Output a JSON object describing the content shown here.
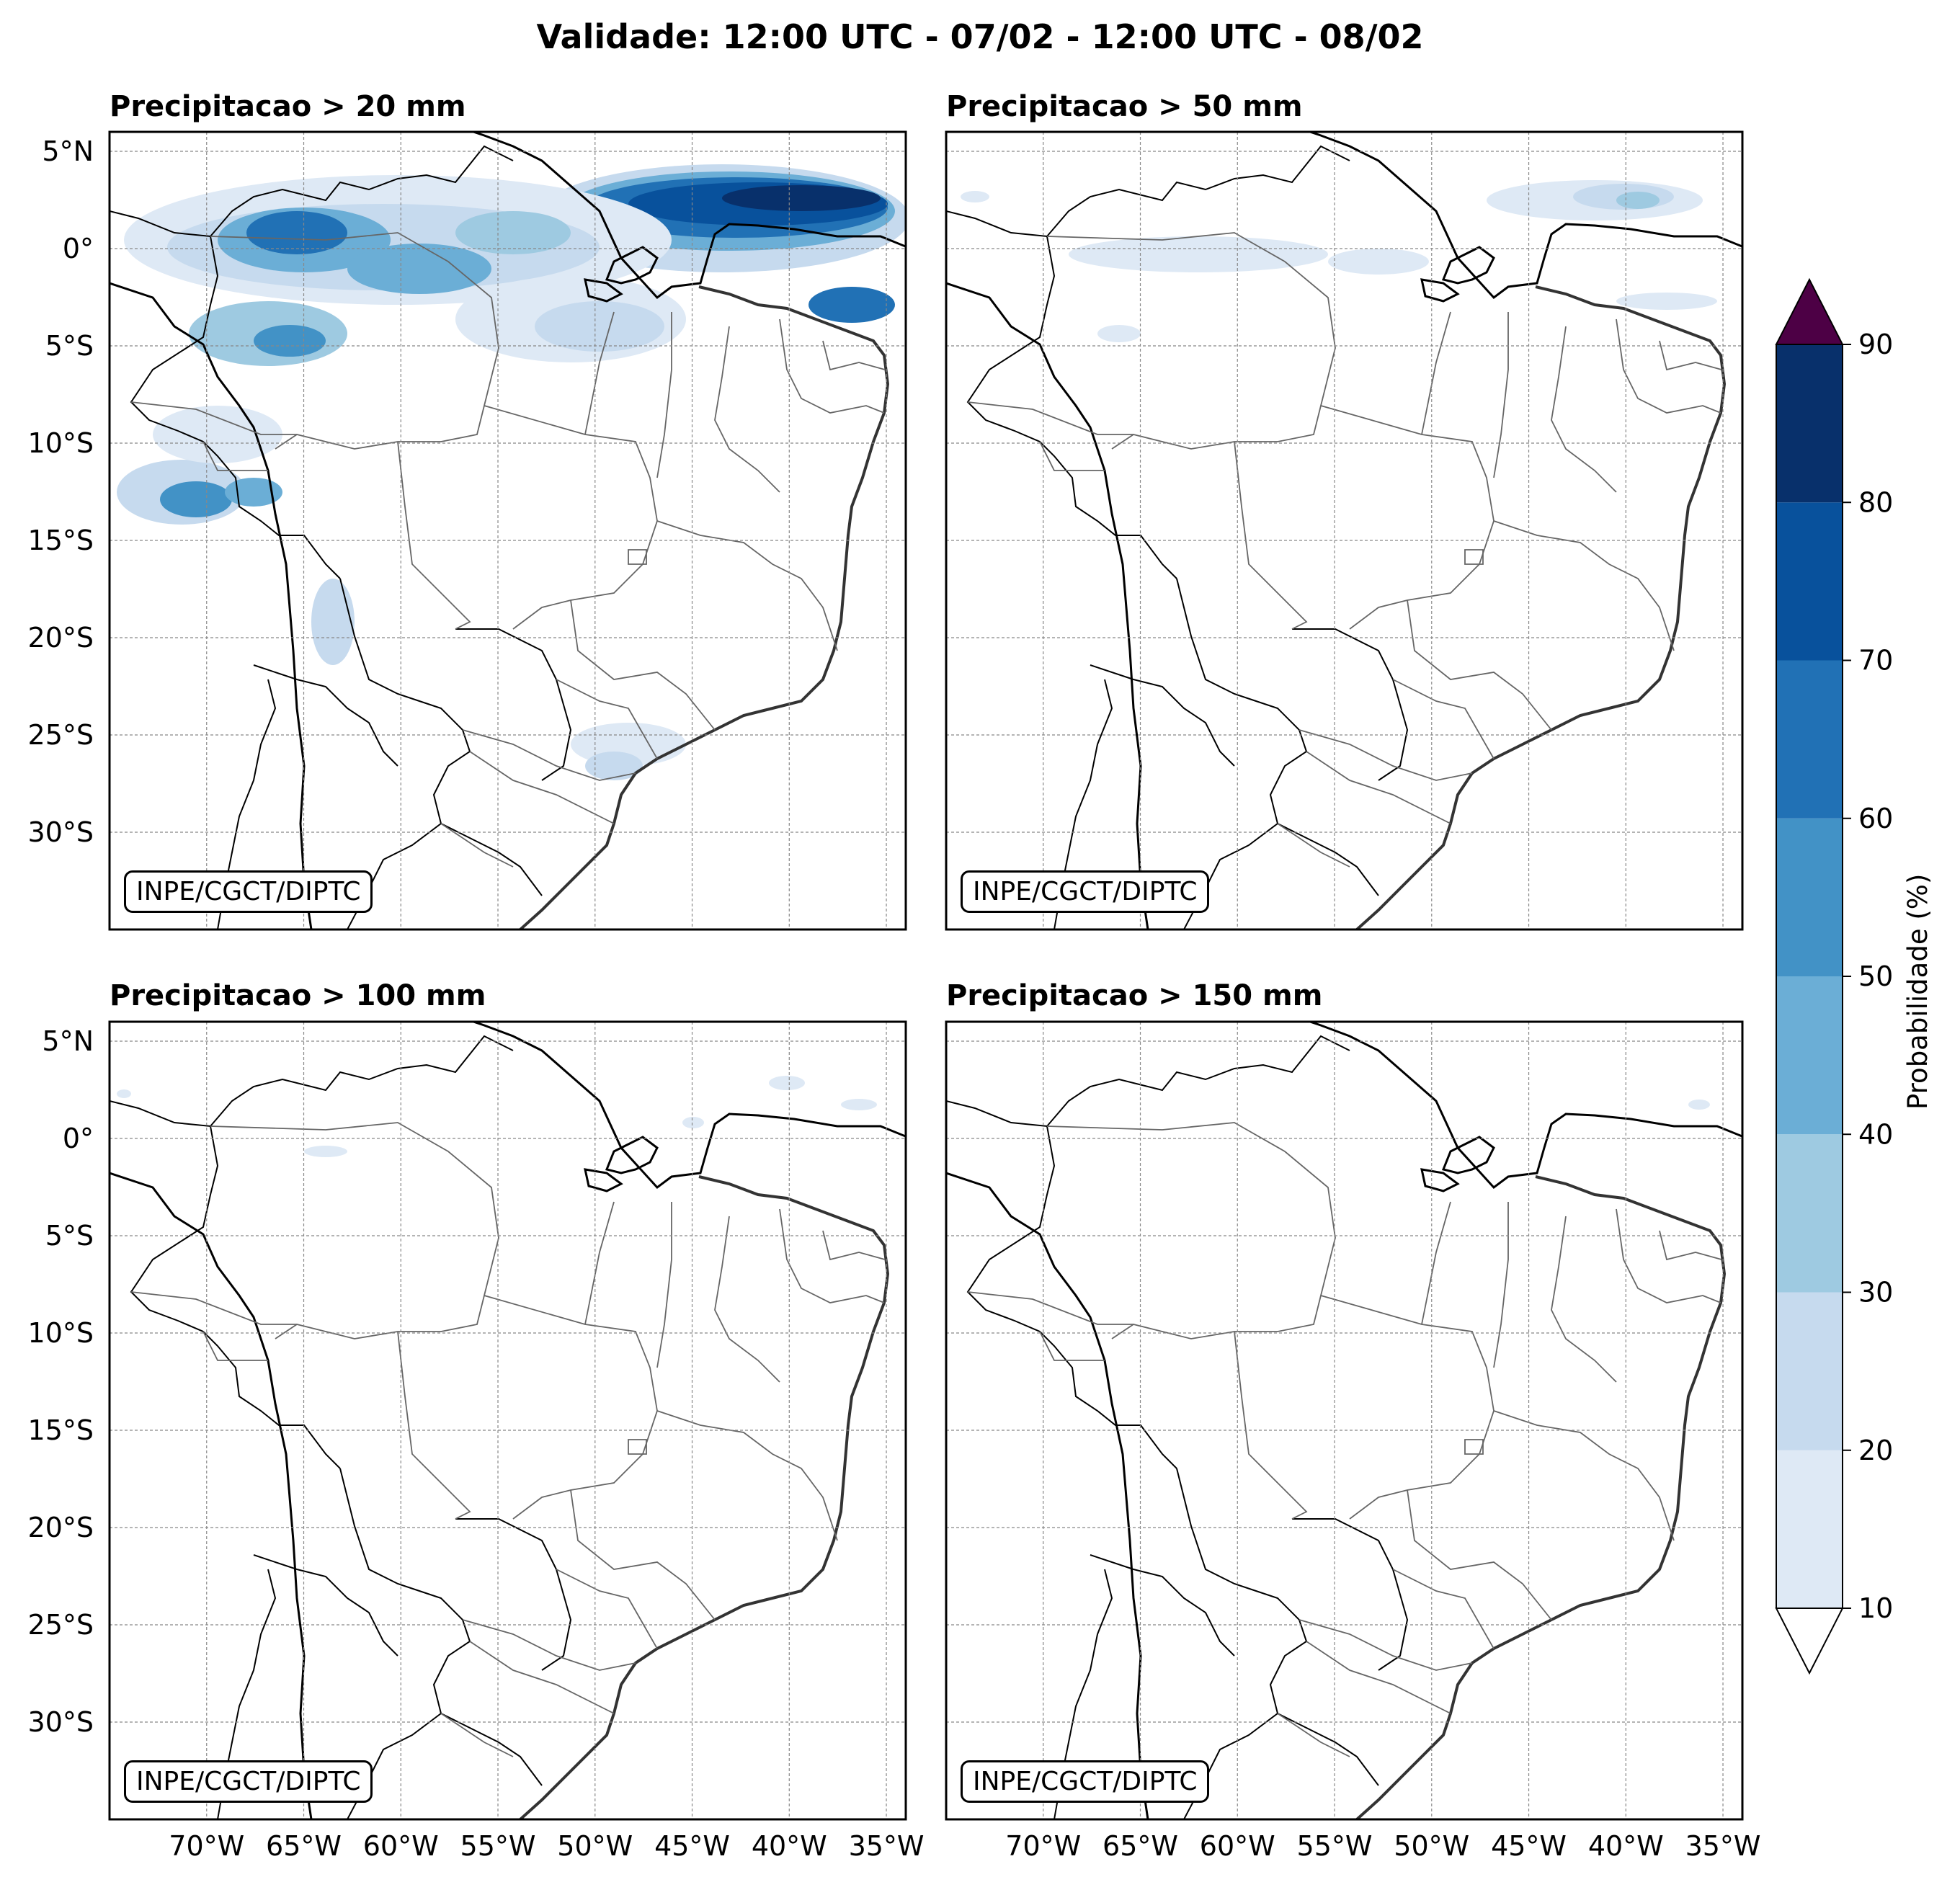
{
  "title": "Validade: 12:00 UTC - 07/02 - 12:00 UTC - 08/02",
  "panels": [
    {
      "id": "p20",
      "title": "Precipitacao > 20 mm",
      "credit": "INPE/CGCT/DIPTC",
      "threshold_mm": 20,
      "coverage": "extensive"
    },
    {
      "id": "p50",
      "title": "Precipitacao > 50 mm",
      "credit": "INPE/CGCT/DIPTC",
      "threshold_mm": 50,
      "coverage": "sparse"
    },
    {
      "id": "p100",
      "title": "Precipitacao > 100 mm",
      "credit": "INPE/CGCT/DIPTC",
      "threshold_mm": 100,
      "coverage": "very sparse"
    },
    {
      "id": "p150",
      "title": "Precipitacao > 150 mm",
      "credit": "INPE/CGCT/DIPTC",
      "threshold_mm": 150,
      "coverage": "nearly none"
    }
  ],
  "map": {
    "region": "Brazil / South America",
    "lon_range": [
      -75,
      -34
    ],
    "lat_range": [
      -35,
      6
    ],
    "lat_ticks": [
      "5°N",
      "0°",
      "5°S",
      "10°S",
      "15°S",
      "20°S",
      "25°S",
      "30°S"
    ],
    "lon_ticks": [
      "70°W",
      "65°W",
      "60°W",
      "55°W",
      "50°W",
      "45°W",
      "40°W",
      "35°W"
    ],
    "gridlines": true
  },
  "colorbar": {
    "label": "Probabilidade (%)",
    "ticks": [
      "10",
      "20",
      "30",
      "40",
      "50",
      "60",
      "70",
      "80",
      "90"
    ],
    "colors": [
      "#dee9f5",
      "#c6daee",
      "#9ecae1",
      "#6baed6",
      "#4292c6",
      "#2171b5",
      "#08519c",
      "#08306b"
    ],
    "over_color": "#4d0045",
    "under_color": "#ffffff"
  }
}
